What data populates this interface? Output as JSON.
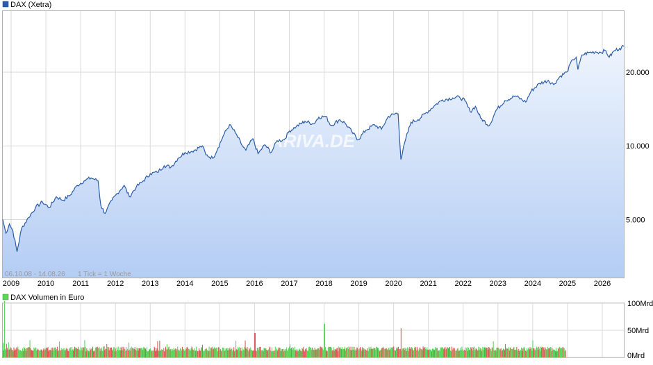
{
  "colors": {
    "price_line": "#2a5caa",
    "area_top": "#eef4fd",
    "area_bottom": "#b4cdf4",
    "grid": "#d9d9d9",
    "vol_up": "#5bd65b",
    "vol_down": "#e05a5a",
    "legend_price": "#2a5caa",
    "legend_volume": "#5bd65b"
  },
  "top_legend": "DAX (Xetra)",
  "bottom_legend": "DAX Volumen in Euro",
  "date_range_note": "06.10.08 - 14.08.26",
  "tick_note": "1 Tick = 1 Woche",
  "watermark": "ARIVA.DE",
  "chart_data": [
    {
      "type": "line",
      "name": "DAX (Xetra)",
      "scale": "log",
      "x_range": [
        2008.76,
        2026.62
      ],
      "ylim": [
        2900,
        35500
      ],
      "y_ticks": [
        5000,
        10000,
        20000
      ],
      "y_tick_labels": [
        "5.000",
        "10.000",
        "20.000"
      ],
      "x_ticks": [
        2009,
        2010,
        2011,
        2012,
        2013,
        2014,
        2015,
        2016,
        2017,
        2018,
        2019,
        2020,
        2021,
        2022,
        2023,
        2024,
        2025,
        2026
      ],
      "x_tick_labels": [
        "2009",
        "2010",
        "2011",
        "2012",
        "2013",
        "2014",
        "2015",
        "2016",
        "2017",
        "2018",
        "2019",
        "2020",
        "2021",
        "2022",
        "2023",
        "2024",
        "2025",
        "2026"
      ],
      "grid": true,
      "points": [
        [
          2008.76,
          5000
        ],
        [
          2008.85,
          4400
        ],
        [
          2008.95,
          4800
        ],
        [
          2009.05,
          4500
        ],
        [
          2009.17,
          3700
        ],
        [
          2009.3,
          4600
        ],
        [
          2009.5,
          5100
        ],
        [
          2009.7,
          5600
        ],
        [
          2009.9,
          5900
        ],
        [
          2010.1,
          5600
        ],
        [
          2010.3,
          6200
        ],
        [
          2010.5,
          6000
        ],
        [
          2010.7,
          6300
        ],
        [
          2010.9,
          6900
        ],
        [
          2011.1,
          7200
        ],
        [
          2011.3,
          7400
        ],
        [
          2011.5,
          7200
        ],
        [
          2011.58,
          5700
        ],
        [
          2011.7,
          5300
        ],
        [
          2011.9,
          6000
        ],
        [
          2012.05,
          6400
        ],
        [
          2012.25,
          6900
        ],
        [
          2012.4,
          6200
        ],
        [
          2012.6,
          6800
        ],
        [
          2012.8,
          7200
        ],
        [
          2013.0,
          7700
        ],
        [
          2013.2,
          7800
        ],
        [
          2013.4,
          8300
        ],
        [
          2013.6,
          8200
        ],
        [
          2013.8,
          8900
        ],
        [
          2014.0,
          9400
        ],
        [
          2014.2,
          9500
        ],
        [
          2014.5,
          10000
        ],
        [
          2014.6,
          9200
        ],
        [
          2014.8,
          8900
        ],
        [
          2014.95,
          9800
        ],
        [
          2015.1,
          11000
        ],
        [
          2015.28,
          12200
        ],
        [
          2015.45,
          11300
        ],
        [
          2015.65,
          10000
        ],
        [
          2015.75,
          9600
        ],
        [
          2015.95,
          10700
        ],
        [
          2016.1,
          9300
        ],
        [
          2016.3,
          10100
        ],
        [
          2016.48,
          9400
        ],
        [
          2016.65,
          10500
        ],
        [
          2016.85,
          10600
        ],
        [
          2017.0,
          11500
        ],
        [
          2017.2,
          12000
        ],
        [
          2017.45,
          12600
        ],
        [
          2017.7,
          12300
        ],
        [
          2017.85,
          13100
        ],
        [
          2018.05,
          13200
        ],
        [
          2018.2,
          12100
        ],
        [
          2018.45,
          12800
        ],
        [
          2018.6,
          12400
        ],
        [
          2018.8,
          11400
        ],
        [
          2018.98,
          10600
        ],
        [
          2019.2,
          11600
        ],
        [
          2019.45,
          12200
        ],
        [
          2019.65,
          11700
        ],
        [
          2019.85,
          13200
        ],
        [
          2020.1,
          13600
        ],
        [
          2020.13,
          13500
        ],
        [
          2020.21,
          8800
        ],
        [
          2020.35,
          10700
        ],
        [
          2020.5,
          12500
        ],
        [
          2020.7,
          12800
        ],
        [
          2020.95,
          13700
        ],
        [
          2021.2,
          14700
        ],
        [
          2021.4,
          15400
        ],
        [
          2021.7,
          15700
        ],
        [
          2021.9,
          15800
        ],
        [
          2022.05,
          15300
        ],
        [
          2022.2,
          13800
        ],
        [
          2022.35,
          14500
        ],
        [
          2022.5,
          13000
        ],
        [
          2022.75,
          12100
        ],
        [
          2022.95,
          14000
        ],
        [
          2023.2,
          15300
        ],
        [
          2023.5,
          16000
        ],
        [
          2023.8,
          15100
        ],
        [
          2023.95,
          16700
        ],
        [
          2024.2,
          18000
        ],
        [
          2024.45,
          18500
        ],
        [
          2024.6,
          17800
        ],
        [
          2024.8,
          19300
        ],
        [
          2024.98,
          20000
        ],
        [
          2025.15,
          22500
        ],
        [
          2025.25,
          23000
        ],
        [
          2025.3,
          20500
        ],
        [
          2025.42,
          23500
        ],
        [
          2025.6,
          24000
        ],
        [
          2025.8,
          24200
        ],
        [
          2025.95,
          24100
        ],
        [
          2026.1,
          24500
        ],
        [
          2026.2,
          23000
        ],
        [
          2026.35,
          24500
        ],
        [
          2026.5,
          25000
        ],
        [
          2026.62,
          25500
        ]
      ]
    },
    {
      "type": "bar",
      "name": "DAX Volumen in Euro",
      "x_range": [
        2008.76,
        2026.62
      ],
      "ylim": [
        0,
        100
      ],
      "y_ticks": [
        0,
        50,
        100
      ],
      "y_tick_labels": [
        "0Mrd",
        "50Mrd",
        "100Mrd"
      ],
      "values_summary": {
        "typical": 16,
        "peaks": [
          [
            2008.8,
            65
          ],
          [
            2020.2,
            54
          ],
          [
            2018.0,
            62
          ],
          [
            2016.0,
            45
          ]
        ]
      },
      "grid": true
    }
  ]
}
